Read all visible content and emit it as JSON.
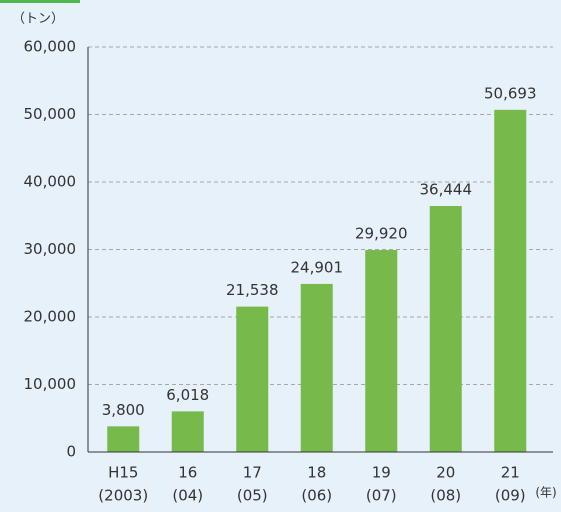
{
  "chart_data": {
    "type": "bar",
    "y_unit": "（トン）",
    "x_unit": "(年)",
    "categories": [
      "H15",
      "16",
      "17",
      "18",
      "19",
      "20",
      "21"
    ],
    "sub_categories": [
      "(2003)",
      "(04)",
      "(05)",
      "(06)",
      "(07)",
      "(08)",
      "(09)"
    ],
    "values": [
      3800,
      6018,
      21538,
      24901,
      29920,
      36444,
      50693
    ],
    "value_labels": [
      "3,800",
      "6,018",
      "21,538",
      "24,901",
      "29,920",
      "36,444",
      "50,693"
    ],
    "color": "#77b94a",
    "ylim": [
      0,
      60000
    ],
    "yticks": [
      0,
      {
        "value": 10000,
        "label": "10,000"
      },
      {
        "value": 20000,
        "label": "20,000"
      },
      {
        "value": 30000,
        "label": "30,000"
      },
      {
        "value": 40000,
        "label": "40,000"
      },
      {
        "value": 50000,
        "label": "50,000"
      },
      {
        "value": 60000,
        "label": "60,000"
      }
    ],
    "grid": true
  }
}
